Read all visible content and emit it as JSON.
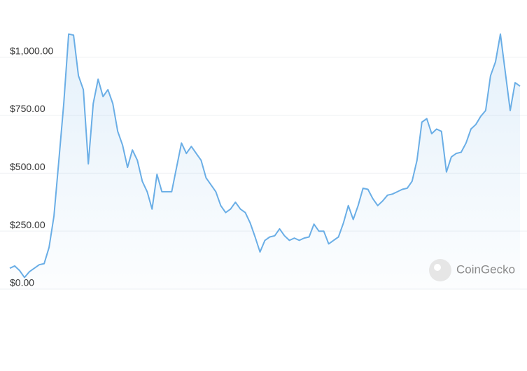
{
  "chart_data": {
    "type": "line",
    "watermark": "CoinGecko",
    "ylim": [
      0,
      1150
    ],
    "yticks": [
      {
        "value": 0,
        "label": "$0.00"
      },
      {
        "value": 250,
        "label": "$250.00"
      },
      {
        "value": 500,
        "label": "$500.00"
      },
      {
        "value": 750,
        "label": "$750.00"
      },
      {
        "value": 1000,
        "label": "$1,000.00"
      }
    ],
    "grid": true,
    "color": "#6aaee6",
    "values": [
      90,
      100,
      80,
      50,
      75,
      90,
      105,
      110,
      180,
      315,
      555,
      800,
      1100,
      1095,
      920,
      860,
      540,
      800,
      905,
      830,
      860,
      800,
      680,
      620,
      525,
      600,
      555,
      465,
      420,
      345,
      495,
      420,
      420,
      420,
      525,
      630,
      585,
      615,
      585,
      555,
      480,
      450,
      420,
      360,
      330,
      345,
      375,
      345,
      330,
      285,
      225,
      160,
      210,
      225,
      230,
      260,
      230,
      210,
      220,
      210,
      220,
      225,
      280,
      250,
      250,
      195,
      210,
      225,
      285,
      360,
      300,
      360,
      435,
      430,
      390,
      360,
      380,
      405,
      410,
      420,
      430,
      435,
      465,
      555,
      720,
      735,
      670,
      690,
      680,
      505,
      570,
      585,
      590,
      630,
      690,
      710,
      745,
      770,
      920,
      980,
      1100,
      935,
      770,
      890,
      875
    ]
  }
}
